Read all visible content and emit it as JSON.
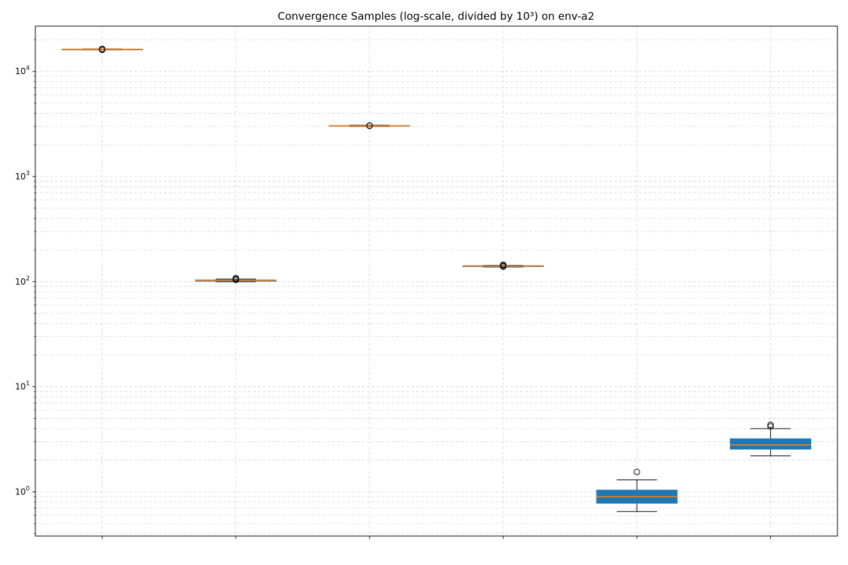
{
  "chart_data": {
    "type": "box",
    "title": "Convergence Samples (log-scale, divided by 10³) on env-a2",
    "xlabel": "",
    "ylabel": "",
    "yscale": "log",
    "ylim": [
      0.38,
      27000
    ],
    "y_tick_labels": [
      {
        "base": "10",
        "exp": "0",
        "value": 1
      },
      {
        "base": "10",
        "exp": "1",
        "value": 10
      },
      {
        "base": "10",
        "exp": "2",
        "value": 100
      },
      {
        "base": "10",
        "exp": "3",
        "value": 1000
      },
      {
        "base": "10",
        "exp": "4",
        "value": 10000
      }
    ],
    "grid": true,
    "box_color": "#1f77b4",
    "median_color": "#ff7f0e",
    "categories": [
      "",
      "",
      "",
      "",
      "",
      ""
    ],
    "boxes": [
      {
        "q1": 16100,
        "median": 16250,
        "q3": 16300,
        "whisker_low": 16050,
        "whisker_high": 16400,
        "outliers": [
          16050,
          16150,
          16400
        ]
      },
      {
        "q1": 101,
        "median": 103,
        "q3": 104,
        "whisker_low": 100,
        "whisker_high": 106,
        "outliers": [
          104,
          106,
          108
        ]
      },
      {
        "q1": 3020,
        "median": 3040,
        "q3": 3060,
        "whisker_low": 3000,
        "whisker_high": 3080,
        "outliers": [
          3040,
          3060
        ]
      },
      {
        "q1": 139,
        "median": 141,
        "q3": 142,
        "whisker_low": 138,
        "whisker_high": 143,
        "outliers": [
          139,
          142,
          145
        ]
      },
      {
        "q1": 0.78,
        "median": 0.9,
        "q3": 1.04,
        "whisker_low": 0.65,
        "whisker_high": 1.3,
        "outliers": [
          1.55
        ]
      },
      {
        "q1": 2.55,
        "median": 2.8,
        "q3": 3.2,
        "whisker_low": 2.2,
        "whisker_high": 4.0,
        "outliers": [
          4.2,
          4.35
        ]
      }
    ]
  }
}
